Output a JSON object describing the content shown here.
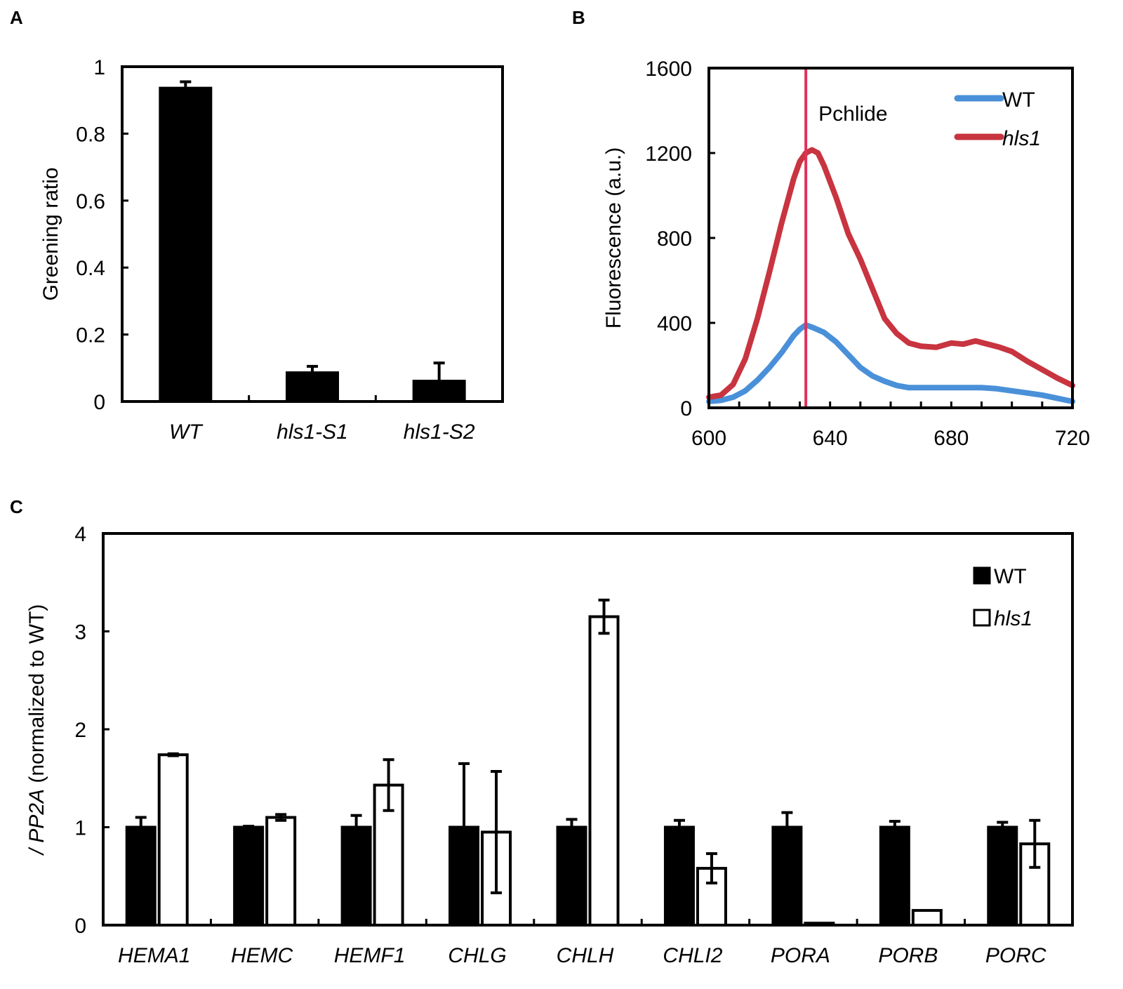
{
  "chart_data": [
    {
      "panel": "A",
      "type": "bar",
      "title": "",
      "xlabel": "",
      "ylabel": "Greening ratio",
      "ylim": [
        0,
        1
      ],
      "yticks": [
        0,
        0.2,
        0.4,
        0.6,
        0.8,
        1
      ],
      "ytick_labels": [
        "0",
        "0.2",
        "0.4",
        "0.6",
        "0.8",
        "1"
      ],
      "categories": [
        "WT",
        "hls1-S1",
        "hls1-S2"
      ],
      "values": [
        0.94,
        0.09,
        0.065
      ],
      "errors": [
        0.015,
        0.015,
        0.05
      ],
      "bar_color": "#000000"
    },
    {
      "panel": "B",
      "type": "line",
      "xlabel": "",
      "ylabel": "Fluorescence (a.u.)",
      "xlim": [
        600,
        720
      ],
      "ylim": [
        0,
        1600
      ],
      "xticks": [
        600,
        640,
        680,
        720
      ],
      "yticks": [
        0,
        400,
        800,
        1200,
        1600
      ],
      "vline": {
        "x": 632,
        "label": "Pchlide",
        "color": "#e0315a"
      },
      "legend_position": "top-right",
      "series": [
        {
          "name": "WT",
          "color": "#4a90d9",
          "x": [
            600,
            604,
            608,
            612,
            616,
            620,
            624,
            628,
            630,
            632,
            634,
            638,
            642,
            646,
            650,
            654,
            658,
            662,
            666,
            670,
            675,
            680,
            685,
            690,
            695,
            700,
            705,
            710,
            715,
            720
          ],
          "y": [
            30,
            35,
            50,
            80,
            130,
            190,
            260,
            340,
            370,
            390,
            380,
            355,
            310,
            250,
            190,
            150,
            125,
            105,
            95,
            95,
            95,
            95,
            95,
            95,
            90,
            80,
            70,
            60,
            45,
            30
          ]
        },
        {
          "name": "hls1",
          "italic": true,
          "color": "#c8343f",
          "x": [
            600,
            604,
            608,
            612,
            616,
            620,
            624,
            628,
            630,
            632,
            634,
            636,
            638,
            642,
            646,
            650,
            654,
            658,
            662,
            666,
            670,
            675,
            680,
            684,
            688,
            692,
            696,
            700,
            705,
            710,
            715,
            720
          ],
          "y": [
            50,
            60,
            110,
            230,
            420,
            640,
            870,
            1080,
            1160,
            1200,
            1215,
            1200,
            1140,
            990,
            820,
            700,
            560,
            420,
            350,
            305,
            290,
            285,
            305,
            300,
            315,
            300,
            285,
            265,
            220,
            180,
            140,
            105
          ]
        }
      ]
    },
    {
      "panel": "C",
      "type": "bar",
      "xlabel": "",
      "ylabel_italic_part": "/ PP2A",
      "ylabel_rest": " (normalized to WT)",
      "ylim": [
        0,
        4
      ],
      "yticks": [
        0,
        1,
        2,
        3,
        4
      ],
      "legend_position": "top-right",
      "categories": [
        "HEMA1",
        "HEMC",
        "HEMF1",
        "CHLG",
        "CHLH",
        "CHLI2",
        "PORA",
        "PORB",
        "PORC"
      ],
      "series": [
        {
          "name": "WT",
          "fill": "#000000",
          "values": [
            1.0,
            1.0,
            1.0,
            1.0,
            1.0,
            1.0,
            1.0,
            1.0,
            1.0
          ],
          "errors": [
            0.1,
            0.01,
            0.12,
            0.65,
            0.08,
            0.07,
            0.15,
            0.06,
            0.05
          ]
        },
        {
          "name": "hls1",
          "italic": true,
          "fill": "#ffffff",
          "values": [
            1.74,
            1.1,
            1.43,
            0.95,
            3.15,
            0.58,
            0.02,
            0.15,
            0.83
          ],
          "errors": [
            0.01,
            0.03,
            0.26,
            0.62,
            0.17,
            0.15,
            0.0,
            0.0,
            0.24
          ]
        }
      ]
    }
  ]
}
